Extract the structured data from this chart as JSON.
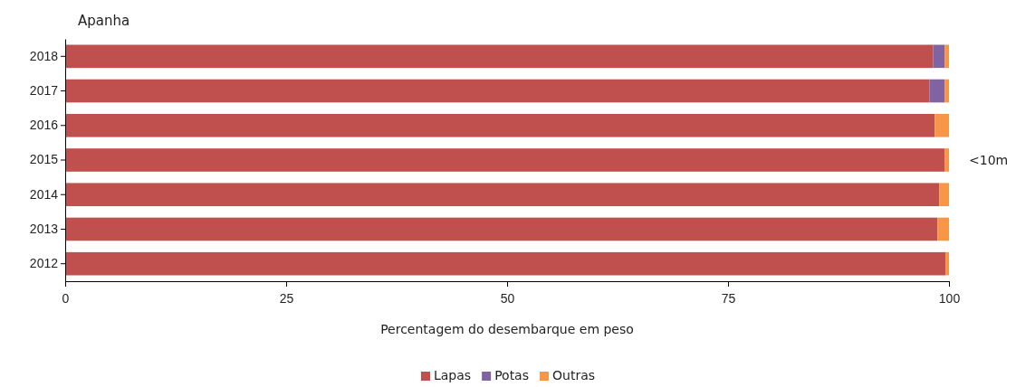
{
  "chart_data": {
    "type": "bar",
    "orientation": "horizontal",
    "stacked": true,
    "title": "Apanha",
    "xlabel": "Percentagem do desembarque em peso",
    "annotations": [
      "<10m"
    ],
    "categories": [
      "2018",
      "2017",
      "2016",
      "2015",
      "2014",
      "2013",
      "2012"
    ],
    "series": [
      {
        "name": "Lapas",
        "color": "#c0504d",
        "values": [
          98.2,
          97.8,
          98.4,
          99.5,
          98.9,
          98.7,
          99.6
        ]
      },
      {
        "name": "Potas",
        "color": "#8064a2",
        "values": [
          1.3,
          1.7,
          0,
          0,
          0,
          0,
          0
        ]
      },
      {
        "name": "Outras",
        "color": "#f79646",
        "values": [
          0.5,
          0.5,
          1.6,
          0.5,
          1.1,
          1.3,
          0.4
        ]
      }
    ],
    "xlim": [
      0,
      100
    ],
    "xticks": [
      0,
      25,
      50,
      75,
      100
    ],
    "grid": false,
    "legend": "bottom"
  }
}
